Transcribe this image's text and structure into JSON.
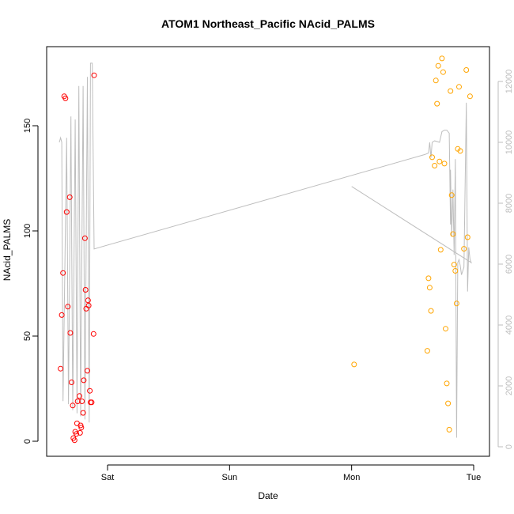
{
  "chart_data": {
    "type": "scatter",
    "title": "ATOM1 Northeast_Pacific NAcid_PALMS",
    "xlabel": "Date",
    "ylabel": "NAcid_PALMS",
    "x_ticks": [
      {
        "label": "Sat",
        "value": 1.0
      },
      {
        "label": "Sun",
        "value": 2.0
      },
      {
        "label": "Mon",
        "value": 3.0
      },
      {
        "label": "Tue",
        "value": 4.0
      }
    ],
    "xlim": [
      0.55,
      4.08
    ],
    "ylim": [
      -5,
      187
    ],
    "y_ticks": [
      0,
      50,
      100,
      150
    ],
    "y2lim": [
      -60,
      13000
    ],
    "y2_ticks": [
      0,
      2000,
      4000,
      6000,
      8000,
      10000,
      12000
    ],
    "grid": false,
    "colors": {
      "series_red": "#ff0000",
      "series_orange": "#ffa500",
      "altitude_line": "#bebebe"
    },
    "series": [
      {
        "color": "red",
        "points": [
          [
            0.615,
            34.5
          ],
          [
            0.625,
            60
          ],
          [
            0.635,
            80
          ],
          [
            0.645,
            164
          ],
          [
            0.655,
            163
          ],
          [
            0.665,
            109
          ],
          [
            0.675,
            64
          ],
          [
            0.69,
            116
          ],
          [
            0.695,
            51.5
          ],
          [
            0.705,
            28
          ],
          [
            0.715,
            17
          ],
          [
            0.72,
            1.5
          ],
          [
            0.73,
            0.5
          ],
          [
            0.735,
            4.5
          ],
          [
            0.745,
            3.5
          ],
          [
            0.75,
            8.5
          ],
          [
            0.755,
            19
          ],
          [
            0.77,
            21.5
          ],
          [
            0.775,
            4
          ],
          [
            0.78,
            7.5
          ],
          [
            0.785,
            6.5
          ],
          [
            0.79,
            19
          ],
          [
            0.8,
            13.5
          ],
          [
            0.805,
            29
          ],
          [
            0.815,
            96.5
          ],
          [
            0.82,
            72
          ],
          [
            0.825,
            63
          ],
          [
            0.835,
            33.5
          ],
          [
            0.84,
            67
          ],
          [
            0.845,
            64.5
          ],
          [
            0.855,
            24
          ],
          [
            0.86,
            18.5
          ],
          [
            0.87,
            18.5
          ],
          [
            0.885,
            51
          ],
          [
            0.89,
            174
          ]
        ]
      },
      {
        "color": "orange",
        "points": [
          [
            3.02,
            36.5
          ],
          [
            3.62,
            43
          ],
          [
            3.63,
            77.5
          ],
          [
            3.64,
            73
          ],
          [
            3.65,
            62
          ],
          [
            3.66,
            135
          ],
          [
            3.68,
            131
          ],
          [
            3.69,
            171.5
          ],
          [
            3.7,
            160.5
          ],
          [
            3.71,
            178.5
          ],
          [
            3.72,
            133
          ],
          [
            3.73,
            91
          ],
          [
            3.74,
            182
          ],
          [
            3.75,
            175.5
          ],
          [
            3.76,
            132
          ],
          [
            3.77,
            53.5
          ],
          [
            3.78,
            27.5
          ],
          [
            3.79,
            18
          ],
          [
            3.8,
            5.5
          ],
          [
            3.81,
            166.5
          ],
          [
            3.82,
            117
          ],
          [
            3.83,
            98.5
          ],
          [
            3.84,
            84
          ],
          [
            3.85,
            81
          ],
          [
            3.86,
            65.5
          ],
          [
            3.87,
            139
          ],
          [
            3.88,
            168.5
          ],
          [
            3.89,
            138
          ],
          [
            3.92,
            91.5
          ],
          [
            3.94,
            176.5
          ],
          [
            3.95,
            97
          ],
          [
            3.97,
            164
          ]
        ]
      }
    ],
    "altitude_line": [
      [
        0.605,
        10000
      ],
      [
        0.615,
        10150
      ],
      [
        0.625,
        10000
      ],
      [
        0.635,
        1500
      ],
      [
        0.665,
        10150
      ],
      [
        0.68,
        1400
      ],
      [
        0.7,
        10850
      ],
      [
        0.715,
        1200
      ],
      [
        0.735,
        10750
      ],
      [
        0.75,
        1100
      ],
      [
        0.765,
        11850
      ],
      [
        0.78,
        1000
      ],
      [
        0.8,
        11850
      ],
      [
        0.815,
        900
      ],
      [
        0.835,
        12150
      ],
      [
        0.85,
        800
      ],
      [
        0.86,
        12600
      ],
      [
        0.875,
        12600
      ],
      [
        0.89,
        6500
      ],
      [
        3.6,
        9600
      ],
      [
        3.63,
        9650
      ],
      [
        3.64,
        10000
      ],
      [
        3.65,
        9500
      ],
      [
        3.66,
        10000
      ],
      [
        3.68,
        10050
      ],
      [
        3.72,
        10000
      ],
      [
        3.74,
        10350
      ],
      [
        3.76,
        10400
      ],
      [
        3.78,
        10400
      ],
      [
        3.8,
        10300
      ],
      [
        3.81,
        7300
      ],
      [
        3.81,
        9100
      ],
      [
        3.82,
        6900
      ],
      [
        3.83,
        8450
      ],
      [
        3.84,
        6300
      ],
      [
        3.85,
        9450
      ],
      [
        3.86,
        300
      ],
      [
        3.87,
        6050
      ],
      [
        3.88,
        6150
      ],
      [
        3.89,
        5950
      ],
      [
        3.9,
        5650
      ],
      [
        3.92,
        5900
      ],
      [
        3.94,
        11300
      ],
      [
        3.95,
        5100
      ],
      [
        3.96,
        6550
      ],
      [
        3.97,
        6150
      ],
      [
        3.98,
        6050
      ],
      [
        3.0,
        8550
      ]
    ]
  }
}
